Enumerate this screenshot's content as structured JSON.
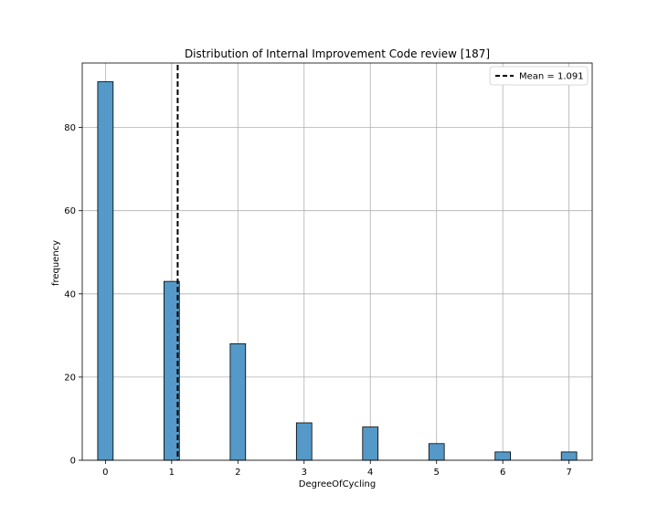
{
  "chart_data": {
    "type": "bar",
    "title": "Distribution of Internal Improvement Code review [187]",
    "xlabel": "DegreeOfCycling",
    "ylabel": "frequency",
    "categories": [
      0,
      1,
      2,
      3,
      4,
      5,
      6,
      7
    ],
    "values": [
      91,
      43,
      28,
      9,
      8,
      4,
      2,
      2
    ],
    "xlim": [
      -0.35,
      7.35
    ],
    "ylim": [
      0,
      95.5
    ],
    "x_ticks": [
      0,
      1,
      2,
      3,
      4,
      5,
      6,
      7
    ],
    "y_ticks": [
      0,
      20,
      40,
      60,
      80
    ],
    "mean": 1.091,
    "legend": {
      "label": "Mean = 1.091",
      "position": "top-right"
    },
    "grid": true,
    "colors": {
      "bar": "#5499c7",
      "bar_edge": "#000000",
      "mean_line": "#000000",
      "grid": "#b0b0b0"
    }
  }
}
